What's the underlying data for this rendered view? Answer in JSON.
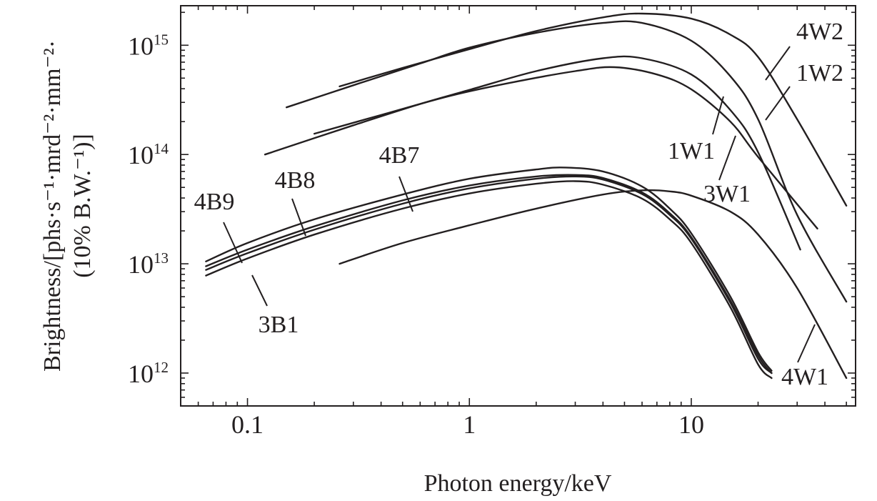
{
  "chart_data": {
    "type": "line",
    "title": "",
    "xlabel": "Photon energy/keV",
    "ylabel_line1": "Brightness/[phs·s⁻¹·mrd⁻²·mm⁻²·",
    "ylabel_line2": "(10% B.W.⁻¹)]",
    "x_scale": "log",
    "y_scale": "log",
    "xlim": [
      0.05,
      55
    ],
    "ylim": [
      500000000000,
      2300000000000000
    ],
    "x_ticks": [
      {
        "value": 0.1,
        "label": "0.1"
      },
      {
        "value": 1,
        "label": "1"
      },
      {
        "value": 10,
        "label": "10"
      }
    ],
    "y_ticks": [
      {
        "value": 1000000000000,
        "base": "10",
        "exp": "12"
      },
      {
        "value": 10000000000000,
        "base": "10",
        "exp": "13"
      },
      {
        "value": 100000000000000,
        "base": "10",
        "exp": "14"
      },
      {
        "value": 1000000000000000,
        "base": "10",
        "exp": "15"
      }
    ],
    "grid": false,
    "legend": "none (series labelled on curves with leader lines)",
    "series": [
      {
        "name": "4W2",
        "x": [
          0.26,
          0.5,
          1,
          2,
          4,
          6,
          10,
          15,
          20,
          30,
          50
        ],
        "y": [
          420000000000000.0,
          620000000000000.0,
          920000000000000.0,
          1350000000000000.0,
          1800000000000000.0,
          1950000000000000.0,
          1750000000000000.0,
          1250000000000000.0,
          780000000000000.0,
          210000000000000.0,
          34000000000000.0
        ]
      },
      {
        "name": "1W2",
        "x": [
          0.15,
          0.3,
          0.6,
          1,
          2,
          4,
          6,
          10,
          15,
          20,
          30,
          50
        ],
        "y": [
          270000000000000.0,
          430000000000000.0,
          680000000000000.0,
          950000000000000.0,
          1300000000000000.0,
          1600000000000000.0,
          1600000000000000.0,
          1100000000000000.0,
          520000000000000.0,
          210000000000000.0,
          28000000000000.0,
          4500000000000.0
        ]
      },
      {
        "name": "3W1",
        "x": [
          0.12,
          0.3,
          0.6,
          1,
          2,
          4,
          6,
          10,
          15,
          20,
          31
        ],
        "y": [
          100000000000000.0,
          185000000000000.0,
          290000000000000.0,
          390000000000000.0,
          580000000000000.0,
          760000000000000.0,
          760000000000000.0,
          540000000000000.0,
          255000000000000.0,
          105000000000000.0,
          13500000000000.0
        ]
      },
      {
        "name": "1W1",
        "x": [
          0.2,
          0.4,
          0.8,
          1.5,
          3,
          4.5,
          7,
          10,
          15,
          20,
          37
        ],
        "y": [
          155000000000000.0,
          230000000000000.0,
          340000000000000.0,
          450000000000000.0,
          580000000000000.0,
          630000000000000.0,
          540000000000000.0,
          395000000000000.0,
          200000000000000.0,
          95000000000000.0,
          21000000000000.0
        ]
      },
      {
        "name": "4B8",
        "x": [
          0.065,
          0.1,
          0.2,
          0.5,
          1,
          2,
          2.7,
          4,
          6,
          8,
          10,
          15,
          20,
          23
        ],
        "y": [
          10500000000000.0,
          15500000000000.0,
          25500000000000.0,
          43000000000000.0,
          60000000000000.0,
          73000000000000.0,
          76000000000000.0,
          70000000000000.0,
          51000000000000.0,
          32000000000000.0,
          19000000000000.0,
          5000000000000.0,
          1550000000000.0,
          1050000000000.0
        ]
      },
      {
        "name": "4B7",
        "x": [
          0.065,
          0.1,
          0.2,
          0.5,
          1,
          2,
          3,
          4,
          6,
          8,
          10,
          15,
          20,
          23
        ],
        "y": [
          9500000000000.0,
          13500000000000.0,
          22000000000000.0,
          38000000000000.0,
          52000000000000.0,
          63000000000000.0,
          65000000000000.0,
          61000000000000.0,
          45000000000000.0,
          29000000000000.0,
          17500000000000.0,
          4600000000000.0,
          1450000000000.0,
          1000000000000.0
        ]
      },
      {
        "name": "3B1",
        "x": [
          0.065,
          0.1,
          0.2,
          0.5,
          1,
          2,
          3,
          4,
          6,
          8,
          10,
          15,
          20,
          23
        ],
        "y": [
          8800000000000.0,
          12500000000000.0,
          20500000000000.0,
          35500000000000.0,
          49000000000000.0,
          60000000000000.0,
          63000000000000.0,
          59000000000000.0,
          43500000000000.0,
          28000000000000.0,
          17000000000000.0,
          4400000000000.0,
          1350000000000.0,
          1000000000000.0
        ]
      },
      {
        "name": "4B9",
        "x": [
          0.065,
          0.1,
          0.2,
          0.5,
          1,
          2,
          3,
          4,
          6,
          8,
          10,
          15,
          20,
          23
        ],
        "y": [
          7800000000000.0,
          11200000000000.0,
          18500000000000.0,
          32000000000000.0,
          44000000000000.0,
          54000000000000.0,
          57000000000000.0,
          53000000000000.0,
          39500000000000.0,
          25500000000000.0,
          15500000000000.0,
          4000000000000.0,
          1200000000000.0,
          900000000000.0
        ]
      },
      {
        "name": "4W1",
        "x": [
          0.26,
          0.5,
          1,
          2,
          4,
          6,
          8,
          10,
          15,
          20,
          30,
          50
        ],
        "y": [
          10000000000000.0,
          15500000000000.0,
          22500000000000.0,
          32000000000000.0,
          43000000000000.0,
          47000000000000.0,
          46000000000000.0,
          42000000000000.0,
          30000000000000.0,
          18500000000000.0,
          6000000000000.0,
          900000000000.0
        ]
      }
    ],
    "labels": [
      {
        "text": "4W2"
      },
      {
        "text": "1W2"
      },
      {
        "text": "1W1"
      },
      {
        "text": "3W1"
      },
      {
        "text": "4B7"
      },
      {
        "text": "4B8"
      },
      {
        "text": "4B9"
      },
      {
        "text": "3B1"
      },
      {
        "text": "4W1"
      }
    ]
  }
}
